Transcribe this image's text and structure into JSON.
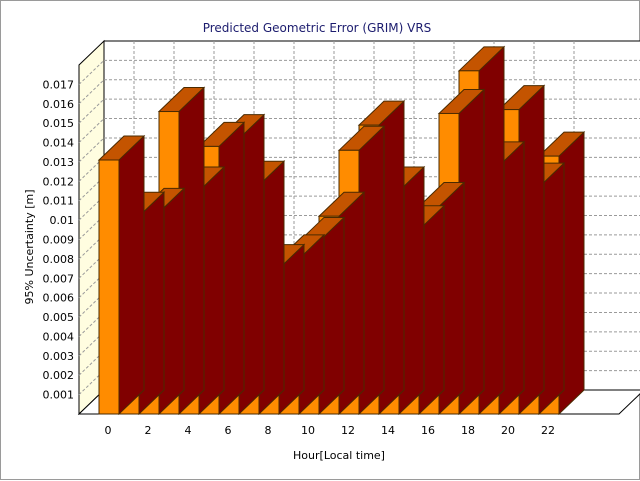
{
  "chart_data": {
    "type": "bar",
    "title": "Predicted Geometric Error (GRIM) VRS",
    "xlabel": "Hour[Local time]",
    "ylabel": "95% Uncertainty [m]",
    "x": [
      0,
      1,
      2,
      3,
      4,
      5,
      6,
      7,
      8,
      9,
      10,
      11,
      12,
      13,
      14,
      15,
      16,
      17,
      18,
      19,
      20,
      21,
      22,
      23
    ],
    "x_tick_labels": [
      "0",
      "2",
      "4",
      "6",
      "8",
      "10",
      "12",
      "14",
      "16",
      "18",
      "20",
      "22"
    ],
    "x_tick_positions": [
      0,
      2,
      4,
      6,
      8,
      10,
      12,
      14,
      16,
      18,
      20,
      22
    ],
    "values": [
      0.0131,
      0.0102,
      0.0104,
      0.0156,
      0.0115,
      0.0138,
      0.0142,
      0.0118,
      0.0075,
      0.008,
      0.0089,
      0.0102,
      0.0136,
      0.0149,
      0.0115,
      0.0095,
      0.0107,
      0.0155,
      0.0177,
      0.0128,
      0.0157,
      0.0117,
      0.0133,
      0.0
    ],
    "ylim": [
      0,
      0.018
    ],
    "y_tick_labels": [
      "0.001",
      "0.002",
      "0.003",
      "0.004",
      "0.005",
      "0.006",
      "0.007",
      "0.008",
      "0.009",
      "0.01",
      "0.011",
      "0.012",
      "0.013",
      "0.014",
      "0.015",
      "0.016",
      "0.017"
    ],
    "y_tick_values": [
      0.001,
      0.002,
      0.003,
      0.004,
      0.005,
      0.006,
      0.007,
      0.008,
      0.009,
      0.01,
      0.011,
      0.012,
      0.013,
      0.014,
      0.015,
      0.016,
      0.017
    ],
    "grid": true,
    "colors": {
      "bar_front": "#ff8c00",
      "bar_top": "#c45400",
      "bar_side": "#800000",
      "bar_edge": "#4a2a00",
      "back_wall": "#ffffff",
      "left_wall": "#fffde0",
      "grid": "#9a9a9a"
    }
  }
}
